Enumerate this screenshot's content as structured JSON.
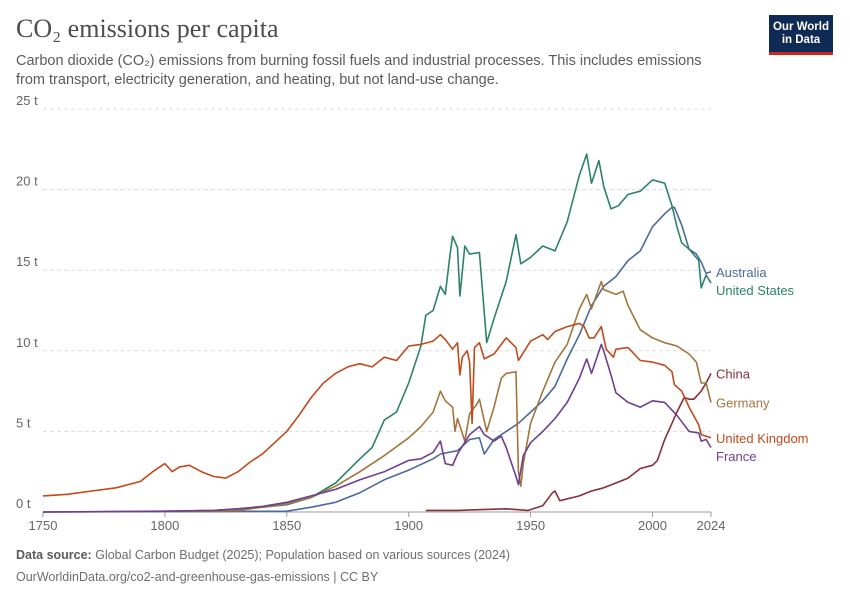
{
  "header": {
    "title": "CO₂ emissions per capita",
    "subtitle": "Carbon dioxide (CO₂) emissions from burning fossil fuels and industrial processes. This includes emissions from transport, electricity generation, and heating, but not land-use change.",
    "logo_line1": "Our World",
    "logo_line2": "in Data"
  },
  "footer": {
    "source_label": "Data source:",
    "source_text": "Global Carbon Budget (2025); Population based on various sources (2024)",
    "url": "OurWorldinData.org/co2-and-greenhouse-gas-emissions | CC BY"
  },
  "chart_data": {
    "type": "line",
    "title": "CO₂ emissions per capita",
    "xlabel": "",
    "ylabel": "",
    "xlim": [
      1750,
      2024
    ],
    "ylim": [
      0,
      25
    ],
    "grid": true,
    "y_ticks": [
      0,
      5,
      10,
      15,
      20,
      25
    ],
    "y_tick_labels": [
      "0 t",
      "5 t",
      "10 t",
      "15 t",
      "20 t",
      "25 t"
    ],
    "x_ticks": [
      1750,
      1800,
      1850,
      1900,
      1950,
      2000,
      2024
    ],
    "x_tick_labels": [
      "1750",
      "1800",
      "1850",
      "1900",
      "1950",
      "2000",
      "2024"
    ],
    "series": [
      {
        "name": "Australia",
        "color": "#4c6a9c",
        "label_value": 14.9,
        "points": [
          [
            1750,
            0
          ],
          [
            1850,
            0.05
          ],
          [
            1860,
            0.3
          ],
          [
            1870,
            0.6
          ],
          [
            1880,
            1.2
          ],
          [
            1890,
            2.0
          ],
          [
            1900,
            2.6
          ],
          [
            1910,
            3.3
          ],
          [
            1913,
            3.6
          ],
          [
            1920,
            3.8
          ],
          [
            1925,
            4.5
          ],
          [
            1929,
            4.6
          ],
          [
            1931,
            3.6
          ],
          [
            1935,
            4.5
          ],
          [
            1940,
            5.0
          ],
          [
            1945,
            5.5
          ],
          [
            1950,
            6.2
          ],
          [
            1955,
            6.9
          ],
          [
            1960,
            7.8
          ],
          [
            1965,
            9.5
          ],
          [
            1970,
            11.0
          ],
          [
            1975,
            12.8
          ],
          [
            1980,
            14.0
          ],
          [
            1985,
            14.6
          ],
          [
            1990,
            15.6
          ],
          [
            1995,
            16.2
          ],
          [
            2000,
            17.7
          ],
          [
            2005,
            18.5
          ],
          [
            2008,
            18.9
          ],
          [
            2009,
            18.9
          ],
          [
            2012,
            17.8
          ],
          [
            2015,
            16.3
          ],
          [
            2018,
            16.0
          ],
          [
            2020,
            15.5
          ],
          [
            2022,
            14.8
          ],
          [
            2024,
            14.9
          ]
        ]
      },
      {
        "name": "United States",
        "color": "#2c8465",
        "label_value": 14.2,
        "points": [
          [
            1800,
            0.05
          ],
          [
            1820,
            0.1
          ],
          [
            1840,
            0.3
          ],
          [
            1850,
            0.45
          ],
          [
            1860,
            0.9
          ],
          [
            1870,
            1.8
          ],
          [
            1880,
            3.3
          ],
          [
            1885,
            4.0
          ],
          [
            1890,
            5.7
          ],
          [
            1895,
            6.2
          ],
          [
            1900,
            8.0
          ],
          [
            1905,
            10.3
          ],
          [
            1907,
            12.2
          ],
          [
            1910,
            12.5
          ],
          [
            1913,
            14.0
          ],
          [
            1915,
            13.5
          ],
          [
            1917,
            16.0
          ],
          [
            1918,
            17.1
          ],
          [
            1920,
            16.4
          ],
          [
            1921,
            13.4
          ],
          [
            1923,
            16.5
          ],
          [
            1925,
            16.0
          ],
          [
            1929,
            16.1
          ],
          [
            1932,
            10.5
          ],
          [
            1935,
            12.0
          ],
          [
            1940,
            14.3
          ],
          [
            1944,
            17.2
          ],
          [
            1946,
            15.4
          ],
          [
            1950,
            15.8
          ],
          [
            1955,
            16.5
          ],
          [
            1960,
            16.2
          ],
          [
            1965,
            18.0
          ],
          [
            1970,
            20.9
          ],
          [
            1973,
            22.2
          ],
          [
            1975,
            20.4
          ],
          [
            1978,
            21.8
          ],
          [
            1980,
            20.2
          ],
          [
            1983,
            18.8
          ],
          [
            1986,
            19.0
          ],
          [
            1990,
            19.7
          ],
          [
            1995,
            19.9
          ],
          [
            2000,
            20.6
          ],
          [
            2005,
            20.4
          ],
          [
            2008,
            19.0
          ],
          [
            2010,
            17.7
          ],
          [
            2012,
            16.7
          ],
          [
            2015,
            16.3
          ],
          [
            2019,
            15.6
          ],
          [
            2020,
            13.9
          ],
          [
            2022,
            14.7
          ],
          [
            2024,
            14.2
          ]
        ]
      },
      {
        "name": "China",
        "color": "#883039",
        "label_value": 8.6,
        "points": [
          [
            1907,
            0.1
          ],
          [
            1920,
            0.1
          ],
          [
            1930,
            0.15
          ],
          [
            1940,
            0.2
          ],
          [
            1949,
            0.1
          ],
          [
            1955,
            0.4
          ],
          [
            1959,
            1.2
          ],
          [
            1960,
            1.3
          ],
          [
            1962,
            0.7
          ],
          [
            1970,
            1.0
          ],
          [
            1975,
            1.3
          ],
          [
            1980,
            1.5
          ],
          [
            1985,
            1.8
          ],
          [
            1990,
            2.1
          ],
          [
            1995,
            2.7
          ],
          [
            2000,
            2.9
          ],
          [
            2002,
            3.2
          ],
          [
            2005,
            4.5
          ],
          [
            2008,
            5.5
          ],
          [
            2010,
            6.2
          ],
          [
            2013,
            7.1
          ],
          [
            2015,
            7.0
          ],
          [
            2017,
            7.0
          ],
          [
            2020,
            7.5
          ],
          [
            2022,
            8.0
          ],
          [
            2024,
            8.6
          ]
        ]
      },
      {
        "name": "Germany",
        "color": "#a2753c",
        "label_value": 6.8,
        "points": [
          [
            1750,
            0
          ],
          [
            1820,
            0.05
          ],
          [
            1830,
            0.1
          ],
          [
            1840,
            0.3
          ],
          [
            1850,
            0.5
          ],
          [
            1860,
            0.9
          ],
          [
            1870,
            1.6
          ],
          [
            1880,
            2.5
          ],
          [
            1890,
            3.5
          ],
          [
            1900,
            4.6
          ],
          [
            1905,
            5.3
          ],
          [
            1910,
            6.2
          ],
          [
            1913,
            7.5
          ],
          [
            1915,
            6.9
          ],
          [
            1918,
            6.5
          ],
          [
            1919,
            5.0
          ],
          [
            1920,
            5.8
          ],
          [
            1923,
            4.4
          ],
          [
            1925,
            6.1
          ],
          [
            1928,
            6.7
          ],
          [
            1929,
            7.0
          ],
          [
            1932,
            5.0
          ],
          [
            1935,
            6.5
          ],
          [
            1938,
            8.3
          ],
          [
            1940,
            8.6
          ],
          [
            1944,
            8.7
          ],
          [
            1945,
            2.5
          ],
          [
            1946,
            1.6
          ],
          [
            1947,
            3.0
          ],
          [
            1950,
            5.5
          ],
          [
            1955,
            7.5
          ],
          [
            1960,
            9.3
          ],
          [
            1965,
            10.4
          ],
          [
            1970,
            12.6
          ],
          [
            1973,
            13.5
          ],
          [
            1975,
            12.6
          ],
          [
            1979,
            14.3
          ],
          [
            1980,
            13.8
          ],
          [
            1985,
            13.5
          ],
          [
            1988,
            13.7
          ],
          [
            1990,
            12.8
          ],
          [
            1995,
            11.3
          ],
          [
            2000,
            10.8
          ],
          [
            2005,
            10.5
          ],
          [
            2010,
            10.3
          ],
          [
            2015,
            9.8
          ],
          [
            2018,
            9.3
          ],
          [
            2020,
            8.0
          ],
          [
            2022,
            8.0
          ],
          [
            2024,
            6.8
          ]
        ]
      },
      {
        "name": "United Kingdom",
        "color": "#be4a1d",
        "label_value": 4.6,
        "points": [
          [
            1750,
            1.0
          ],
          [
            1760,
            1.1
          ],
          [
            1770,
            1.3
          ],
          [
            1780,
            1.5
          ],
          [
            1790,
            1.9
          ],
          [
            1795,
            2.5
          ],
          [
            1800,
            3.0
          ],
          [
            1803,
            2.5
          ],
          [
            1806,
            2.8
          ],
          [
            1810,
            2.9
          ],
          [
            1815,
            2.5
          ],
          [
            1820,
            2.2
          ],
          [
            1825,
            2.1
          ],
          [
            1830,
            2.5
          ],
          [
            1835,
            3.1
          ],
          [
            1840,
            3.6
          ],
          [
            1845,
            4.3
          ],
          [
            1850,
            5.0
          ],
          [
            1855,
            6.0
          ],
          [
            1860,
            7.1
          ],
          [
            1865,
            8.0
          ],
          [
            1870,
            8.6
          ],
          [
            1875,
            9.0
          ],
          [
            1880,
            9.2
          ],
          [
            1885,
            9.0
          ],
          [
            1890,
            9.6
          ],
          [
            1895,
            9.4
          ],
          [
            1900,
            10.3
          ],
          [
            1905,
            10.4
          ],
          [
            1910,
            10.6
          ],
          [
            1913,
            11.0
          ],
          [
            1915,
            10.7
          ],
          [
            1918,
            10.1
          ],
          [
            1920,
            10.5
          ],
          [
            1921,
            8.5
          ],
          [
            1922,
            9.6
          ],
          [
            1924,
            10.0
          ],
          [
            1925,
            9.3
          ],
          [
            1926,
            5.5
          ],
          [
            1927,
            10.2
          ],
          [
            1929,
            10.5
          ],
          [
            1931,
            9.5
          ],
          [
            1935,
            9.8
          ],
          [
            1940,
            10.8
          ],
          [
            1944,
            10.2
          ],
          [
            1945,
            9.4
          ],
          [
            1950,
            10.6
          ],
          [
            1955,
            11.0
          ],
          [
            1957,
            10.7
          ],
          [
            1960,
            11.2
          ],
          [
            1965,
            11.5
          ],
          [
            1970,
            11.7
          ],
          [
            1972,
            11.5
          ],
          [
            1974,
            10.8
          ],
          [
            1976,
            10.8
          ],
          [
            1979,
            11.5
          ],
          [
            1981,
            10.1
          ],
          [
            1984,
            9.6
          ],
          [
            1985,
            10.1
          ],
          [
            1990,
            10.2
          ],
          [
            1995,
            9.4
          ],
          [
            2000,
            9.3
          ],
          [
            2005,
            9.1
          ],
          [
            2008,
            8.7
          ],
          [
            2009,
            7.9
          ],
          [
            2012,
            7.5
          ],
          [
            2015,
            6.5
          ],
          [
            2019,
            5.4
          ],
          [
            2020,
            4.8
          ],
          [
            2022,
            4.7
          ],
          [
            2024,
            4.6
          ]
        ]
      },
      {
        "name": "France",
        "color": "#6d3e91",
        "label_value": 4.0,
        "points": [
          [
            1750,
            0
          ],
          [
            1800,
            0.05
          ],
          [
            1820,
            0.1
          ],
          [
            1830,
            0.2
          ],
          [
            1840,
            0.35
          ],
          [
            1850,
            0.6
          ],
          [
            1860,
            1.0
          ],
          [
            1870,
            1.4
          ],
          [
            1880,
            2.0
          ],
          [
            1890,
            2.5
          ],
          [
            1900,
            3.2
          ],
          [
            1905,
            3.3
          ],
          [
            1910,
            3.7
          ],
          [
            1913,
            4.4
          ],
          [
            1915,
            3.0
          ],
          [
            1918,
            2.9
          ],
          [
            1920,
            3.6
          ],
          [
            1925,
            4.8
          ],
          [
            1929,
            5.3
          ],
          [
            1931,
            4.8
          ],
          [
            1935,
            4.4
          ],
          [
            1938,
            4.7
          ],
          [
            1940,
            4.0
          ],
          [
            1944,
            2.2
          ],
          [
            1945,
            1.7
          ],
          [
            1947,
            3.5
          ],
          [
            1950,
            4.3
          ],
          [
            1955,
            5.0
          ],
          [
            1960,
            5.8
          ],
          [
            1965,
            6.8
          ],
          [
            1970,
            8.3
          ],
          [
            1973,
            9.5
          ],
          [
            1975,
            8.6
          ],
          [
            1979,
            10.4
          ],
          [
            1980,
            10.0
          ],
          [
            1983,
            8.5
          ],
          [
            1985,
            7.4
          ],
          [
            1990,
            6.8
          ],
          [
            1995,
            6.5
          ],
          [
            2000,
            6.9
          ],
          [
            2005,
            6.8
          ],
          [
            2010,
            6.0
          ],
          [
            2015,
            5.0
          ],
          [
            2019,
            4.9
          ],
          [
            2020,
            4.4
          ],
          [
            2022,
            4.5
          ],
          [
            2024,
            4.0
          ]
        ]
      }
    ],
    "end_labels": [
      {
        "name": "Australia",
        "color": "#4c6a9c"
      },
      {
        "name": "United States",
        "color": "#2c8465"
      },
      {
        "name": "China",
        "color": "#883039"
      },
      {
        "name": "Germany",
        "color": "#a2753c"
      },
      {
        "name": "United Kingdom",
        "color": "#be4a1d"
      },
      {
        "name": "France",
        "color": "#6d3e91"
      }
    ]
  }
}
